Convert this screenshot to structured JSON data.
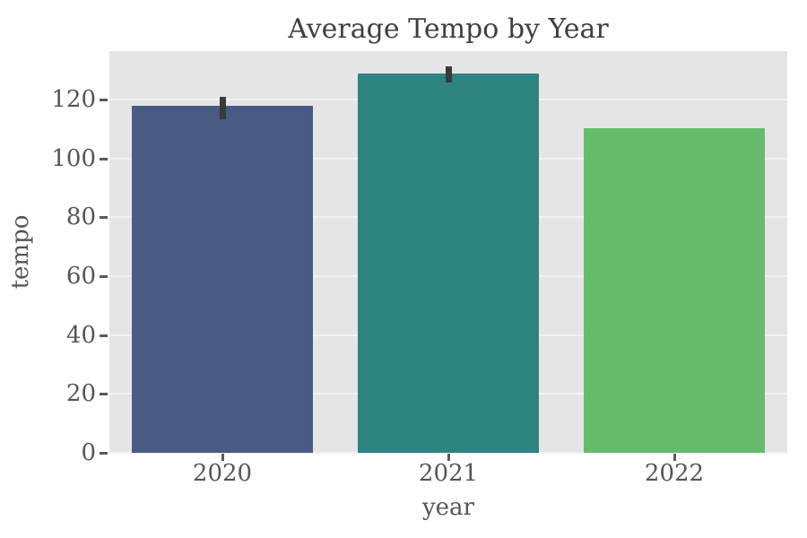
{
  "chart_data": {
    "type": "bar",
    "title": "Average Tempo by Year",
    "xlabel": "year",
    "ylabel": "tempo",
    "categories": [
      "2020",
      "2021",
      "2022"
    ],
    "values": [
      117.8,
      128.8,
      110.3
    ],
    "error_bars": [
      {
        "low": 113.3,
        "high": 120.9
      },
      {
        "low": 125.8,
        "high": 131.3
      },
      null
    ],
    "bar_colors": [
      "#475b85",
      "#2e8480",
      "#67bc6b"
    ],
    "yticks": [
      0,
      20,
      40,
      60,
      80,
      100,
      120
    ],
    "ylim": [
      0,
      136.5
    ],
    "grid": {
      "axis": "y",
      "on": true
    },
    "legend": "none",
    "colors": {
      "figure_background": "#ffffff",
      "plot_background": "#e5e5e5",
      "grid_line": "#f2f2f2",
      "tick_text": "#555555",
      "title_text": "#3f3f3f",
      "tick_mark": "#5a5a5a",
      "errorbar": "#3a3a3a"
    }
  }
}
